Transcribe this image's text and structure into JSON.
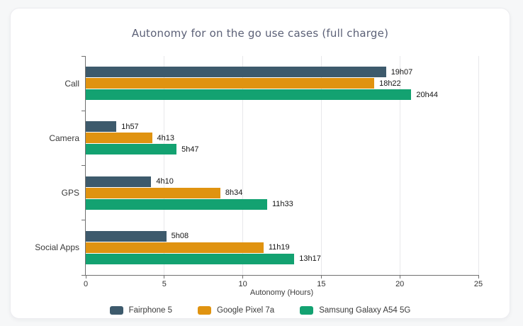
{
  "title": "Autonomy for on the go use cases (full charge)",
  "colors": {
    "page_background": "#F6F7F8",
    "card_background": "#FFFFFF",
    "title_text": "#5C6177",
    "axis": "#707070",
    "gridline": "#E8E8EB",
    "tick_text": "#333333",
    "value_text": "#141414",
    "series_fairphone": "#3D5A6C",
    "series_pixel": "#E09310",
    "series_samsung": "#13A271"
  },
  "chart_data": {
    "type": "bar",
    "orientation": "horizontal",
    "title": "Autonomy for on the go use cases (full charge)",
    "xlabel": "Autonomy (Hours)",
    "xlim": [
      0,
      25
    ],
    "xticks": [
      0,
      5,
      10,
      15,
      20,
      25
    ],
    "grid": true,
    "legend_position": "bottom",
    "categories": [
      "Call",
      "Camera",
      "GPS",
      "Social Apps"
    ],
    "series": [
      {
        "name": "Fairphone 5",
        "color": "#3D5A6C",
        "value_labels": [
          "19h07",
          "1h57",
          "4h10",
          "5h08"
        ],
        "values_hours": [
          19.12,
          1.95,
          4.17,
          5.13
        ]
      },
      {
        "name": "Google Pixel 7a",
        "color": "#E09310",
        "value_labels": [
          "18h22",
          "4h13",
          "8h34",
          "11h19"
        ],
        "values_hours": [
          18.37,
          4.22,
          8.57,
          11.32
        ]
      },
      {
        "name": "Samsung Galaxy A54 5G",
        "color": "#13A271",
        "value_labels": [
          "20h44",
          "5h47",
          "11h33",
          "13h17"
        ],
        "values_hours": [
          20.73,
          5.78,
          11.55,
          13.28
        ]
      }
    ]
  }
}
